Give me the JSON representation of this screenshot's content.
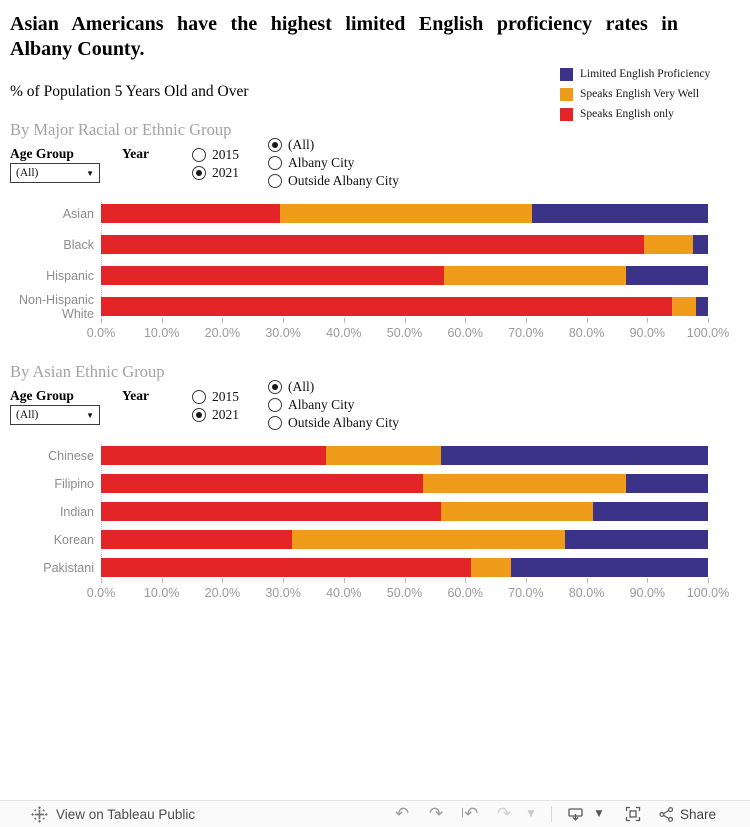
{
  "title_lines": [
    "Asian Americans have the highest limited English proficiency rates in",
    "Albany County."
  ],
  "subtitle": "% of Population 5 Years Old and Over",
  "colors": {
    "red": "#e32528",
    "orange": "#ef9c1b",
    "navy": "#3b3387"
  },
  "legend": {
    "items": [
      {
        "label": "Limited English Proficiency",
        "color": "#3b3387"
      },
      {
        "label": "Speaks English Very Well",
        "color": "#ef9c1b"
      },
      {
        "label": "Speaks English only",
        "color": "#e32528"
      }
    ]
  },
  "sections": [
    {
      "header": "By Major Racial or Ethnic Group",
      "filters": {
        "age_group_label": "Age Group",
        "age_group_value": "(All)",
        "year_label": "Year",
        "year_options": [
          {
            "label": "2015",
            "selected": false
          },
          {
            "label": "2021",
            "selected": true
          }
        ],
        "area_options": [
          {
            "label": "(All)",
            "selected": true
          },
          {
            "label": "Albany City",
            "selected": false
          },
          {
            "label": "Outside Albany City",
            "selected": false
          }
        ]
      }
    },
    {
      "header": "By Asian Ethnic Group",
      "filters": {
        "age_group_label": "Age Group",
        "age_group_value": "(All)",
        "year_label": "Year",
        "year_options": [
          {
            "label": "2015",
            "selected": false
          },
          {
            "label": "2021",
            "selected": true
          }
        ],
        "area_options": [
          {
            "label": "(All)",
            "selected": true
          },
          {
            "label": "Albany City",
            "selected": false
          },
          {
            "label": "Outside Albany City",
            "selected": false
          }
        ]
      }
    }
  ],
  "chart_data": [
    {
      "type": "bar",
      "orientation": "horizontal",
      "stacked": true,
      "title": "By Major Racial or Ethnic Group",
      "categories": [
        "Asian",
        "Black",
        "Hispanic",
        "Non-Hispanic White"
      ],
      "series": [
        {
          "name": "Speaks English only",
          "color_key": "red",
          "values": [
            29.5,
            89.5,
            56.5,
            94
          ]
        },
        {
          "name": "Speaks English Very Well",
          "color_key": "orange",
          "values": [
            41.5,
            8,
            30,
            4
          ]
        },
        {
          "name": "Limited English Proficiency",
          "color_key": "navy",
          "values": [
            29,
            2.5,
            13.5,
            2
          ]
        }
      ],
      "xlim": [
        0,
        100
      ],
      "x_ticks": [
        "0.0%",
        "10.0%",
        "20.0%",
        "30.0%",
        "40.0%",
        "50.0%",
        "60.0%",
        "70.0%",
        "80.0%",
        "90.0%",
        "100.0%"
      ],
      "legend_position": "top-right",
      "grid": false
    },
    {
      "type": "bar",
      "orientation": "horizontal",
      "stacked": true,
      "title": "By Asian Ethnic Group",
      "categories": [
        "Chinese",
        "Filipino",
        "Indian",
        "Korean",
        "Pakistani"
      ],
      "series": [
        {
          "name": "Speaks English only",
          "color_key": "red",
          "values": [
            37,
            53,
            56,
            31.5,
            61
          ]
        },
        {
          "name": "Speaks English Very Well",
          "color_key": "orange",
          "values": [
            19,
            33.5,
            25,
            45,
            6.5
          ]
        },
        {
          "name": "Limited English Proficiency",
          "color_key": "navy",
          "values": [
            44,
            13.5,
            19,
            23.5,
            32.5
          ]
        }
      ],
      "xlim": [
        0,
        100
      ],
      "x_ticks": [
        "0.0%",
        "10.0%",
        "20.0%",
        "30.0%",
        "40.0%",
        "50.0%",
        "60.0%",
        "70.0%",
        "80.0%",
        "90.0%",
        "100.0%"
      ],
      "legend_position": "top-right",
      "grid": false
    }
  ],
  "footer": {
    "view_label": "View on Tableau Public",
    "share_label": "Share"
  }
}
